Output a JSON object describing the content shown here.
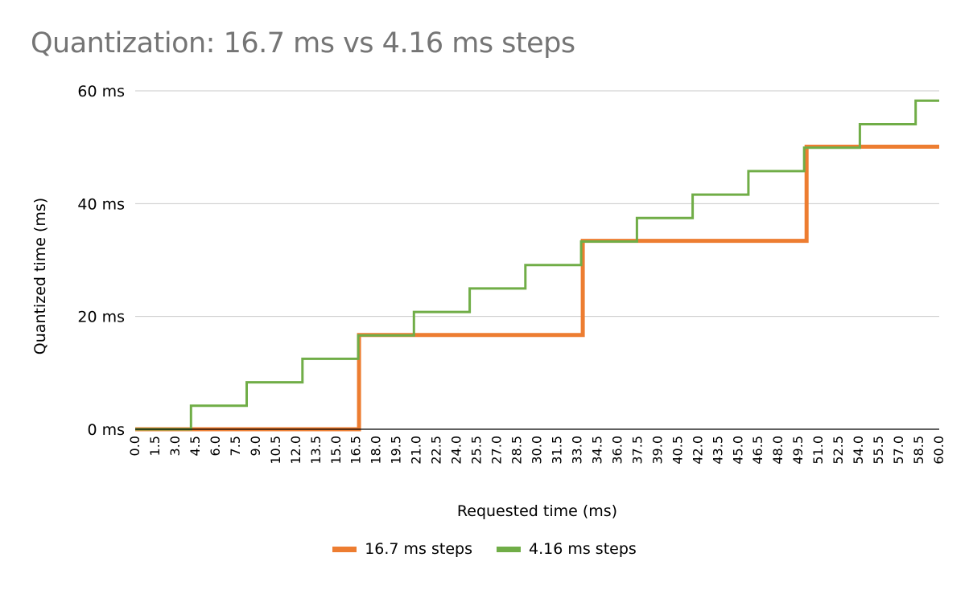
{
  "chart_data": {
    "type": "line",
    "title": "Quantization: 16.7 ms vs 4.16 ms steps",
    "xlabel": "Requested time (ms)",
    "ylabel": "Quantized time (ms)",
    "ylim": [
      0,
      60
    ],
    "y_ticks": [
      "0 ms",
      "20 ms",
      "40 ms",
      "60 ms"
    ],
    "y_tick_values": [
      0,
      20,
      40,
      60
    ],
    "x_ticks": [
      "0.0",
      "1.5",
      "3.0",
      "4.5",
      "6.0",
      "7.5",
      "9.0",
      "10.5",
      "12.0",
      "13.5",
      "15.0",
      "16.5",
      "18.0",
      "19.5",
      "21.0",
      "22.5",
      "24.0",
      "25.5",
      "27.0",
      "28.5",
      "30.0",
      "31.5",
      "33.0",
      "34.5",
      "36.0",
      "37.5",
      "39.0",
      "40.5",
      "42.0",
      "43.5",
      "45.0",
      "46.5",
      "48.0",
      "49.5",
      "51.0",
      "52.5",
      "54.0",
      "55.5",
      "57.0",
      "58.5",
      "60.0"
    ],
    "xlim": [
      0,
      60
    ],
    "grid": "horizontal",
    "legend_position": "bottom",
    "series": [
      {
        "name": "16.7 ms steps",
        "color": "#ED7D31",
        "step": 16.7,
        "x": [
          0,
          16.7,
          16.7,
          33.4,
          33.4,
          50.1,
          50.1,
          60
        ],
        "y": [
          0,
          0,
          16.7,
          16.7,
          33.4,
          33.4,
          50.1,
          50.1
        ]
      },
      {
        "name": "4.16 ms steps",
        "color": "#70AD47",
        "step": 4.16,
        "x": [
          0,
          4.16,
          4.16,
          8.32,
          8.32,
          12.48,
          12.48,
          16.64,
          16.64,
          20.8,
          20.8,
          24.96,
          24.96,
          29.12,
          29.12,
          33.28,
          33.28,
          37.44,
          37.44,
          41.6,
          41.6,
          45.76,
          45.76,
          49.92,
          49.92,
          54.08,
          54.08,
          58.24,
          58.24,
          60
        ],
        "y": [
          0,
          0,
          4.16,
          4.16,
          8.32,
          8.32,
          12.48,
          12.48,
          16.64,
          16.64,
          20.8,
          20.8,
          24.96,
          24.96,
          29.12,
          29.12,
          33.28,
          33.28,
          37.44,
          37.44,
          41.6,
          41.6,
          45.76,
          45.76,
          49.92,
          49.92,
          54.08,
          54.08,
          58.24,
          58.24
        ]
      }
    ]
  }
}
